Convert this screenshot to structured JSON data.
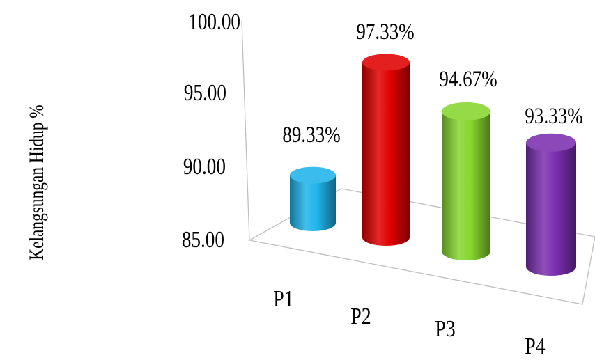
{
  "chart_data": {
    "type": "bar",
    "style": "3d-cylinder",
    "title": "",
    "xlabel": "",
    "ylabel": "Kelangsungan Hidup %",
    "ylim": [
      85,
      100
    ],
    "yticks": [
      "100.00",
      "95.00",
      "90.00",
      "85.00"
    ],
    "categories": [
      "P1",
      "P2",
      "P3",
      "P4"
    ],
    "values": [
      89.33,
      97.33,
      94.67,
      93.33
    ],
    "data_labels": [
      "89.33%",
      "97.33%",
      "94.67%",
      "93.33%"
    ],
    "colors": [
      "#1fb4ea",
      "#e00000",
      "#86d62e",
      "#7a2fb0"
    ],
    "grid": false,
    "legend": "none"
  }
}
